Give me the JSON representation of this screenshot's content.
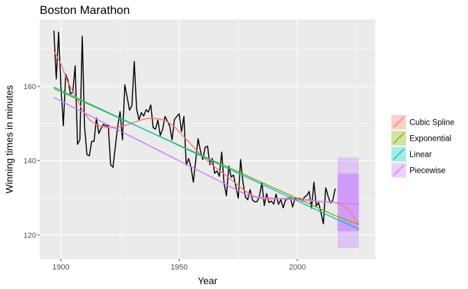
{
  "chart_data": {
    "type": "line",
    "title": "Boston Marathon",
    "xlabel": "Year",
    "ylabel": "Winning times in minutes",
    "xlim": [
      1891,
      2033
    ],
    "ylim": [
      113.5,
      178
    ],
    "x_ticks": [
      1900,
      1950,
      2000
    ],
    "y_ticks": [
      120,
      140,
      160
    ],
    "grid": true,
    "legend_position": "right",
    "observed": {
      "color": "#000000",
      "points": [
        [
          1897,
          175
        ],
        [
          1898,
          162
        ],
        [
          1899,
          174.6
        ],
        [
          1900,
          159.7
        ],
        [
          1901,
          149.4
        ],
        [
          1902,
          163.2
        ],
        [
          1903,
          161.6
        ],
        [
          1904,
          158
        ],
        [
          1905,
          158.4
        ],
        [
          1906,
          165.5
        ],
        [
          1907,
          144.4
        ],
        [
          1908,
          145.6
        ],
        [
          1909,
          173.5
        ],
        [
          1910,
          148.9
        ],
        [
          1911,
          141.6
        ],
        [
          1912,
          141.3
        ],
        [
          1913,
          145.2
        ],
        [
          1914,
          145.2
        ],
        [
          1915,
          151.5
        ],
        [
          1916,
          147.3
        ],
        [
          1917,
          148.7
        ],
        [
          1918,
          149.8
        ],
        [
          1919,
          149.3
        ],
        [
          1920,
          149.5
        ],
        [
          1921,
          138.9
        ],
        [
          1922,
          138.2
        ],
        [
          1923,
          143.8
        ],
        [
          1924,
          149.1
        ],
        [
          1925,
          153.2
        ],
        [
          1926,
          145.6
        ],
        [
          1927,
          160.4
        ],
        [
          1928,
          157.1
        ],
        [
          1929,
          153.6
        ],
        [
          1930,
          154.8
        ],
        [
          1931,
          166.7
        ],
        [
          1932,
          153.9
        ],
        [
          1933,
          151.0
        ],
        [
          1934,
          152.9
        ],
        [
          1935,
          152.0
        ],
        [
          1936,
          153.7
        ],
        [
          1937,
          153.1
        ],
        [
          1938,
          155.0
        ],
        [
          1939,
          148.9
        ],
        [
          1940,
          148.5
        ],
        [
          1941,
          150.9
        ],
        [
          1942,
          146.8
        ],
        [
          1943,
          148.4
        ],
        [
          1944,
          151.9
        ],
        [
          1945,
          150.7
        ],
        [
          1946,
          149.3
        ],
        [
          1947,
          145.6
        ],
        [
          1948,
          151.1
        ],
        [
          1949,
          151.9
        ],
        [
          1950,
          152.6
        ],
        [
          1951,
          147.8
        ],
        [
          1952,
          151.9
        ],
        [
          1953,
          138.8
        ],
        [
          1954,
          140.6
        ],
        [
          1955,
          138.3
        ],
        [
          1956,
          134.2
        ],
        [
          1957,
          140.1
        ],
        [
          1958,
          145.9
        ],
        [
          1959,
          142.6
        ],
        [
          1960,
          140.3
        ],
        [
          1961,
          143.6
        ],
        [
          1962,
          143.9
        ],
        [
          1963,
          138.9
        ],
        [
          1964,
          140.6
        ],
        [
          1965,
          136.6
        ],
        [
          1966,
          137.2
        ],
        [
          1967,
          135.8
        ],
        [
          1968,
          142.3
        ],
        [
          1969,
          133.8
        ],
        [
          1970,
          130.5
        ],
        [
          1971,
          138.5
        ],
        [
          1972,
          135.6
        ],
        [
          1973,
          136.1
        ],
        [
          1974,
          133.0
        ],
        [
          1975,
          129.9
        ],
        [
          1976,
          140.3
        ],
        [
          1977,
          134.1
        ],
        [
          1978,
          130.2
        ],
        [
          1979,
          129.5
        ],
        [
          1980,
          132.2
        ],
        [
          1981,
          129.4
        ],
        [
          1982,
          128.9
        ],
        [
          1983,
          129.0
        ],
        [
          1984,
          130.6
        ],
        [
          1985,
          134.1
        ],
        [
          1986,
          127.9
        ],
        [
          1987,
          131.1
        ],
        [
          1988,
          128.7
        ],
        [
          1989,
          129.1
        ],
        [
          1990,
          128.3
        ],
        [
          1991,
          131.0
        ],
        [
          1992,
          128.2
        ],
        [
          1993,
          129.5
        ],
        [
          1994,
          127.3
        ],
        [
          1995,
          129.4
        ],
        [
          1996,
          129.6
        ],
        [
          1997,
          130.2
        ],
        [
          1998,
          127.5
        ],
        [
          1999,
          129.8
        ],
        [
          2000,
          129.8
        ],
        [
          2001,
          129.9
        ],
        [
          2002,
          129.1
        ],
        [
          2003,
          130.2
        ],
        [
          2004,
          130.6
        ],
        [
          2005,
          131.7
        ],
        [
          2006,
          127.2
        ],
        [
          2007,
          134.2
        ],
        [
          2008,
          127.8
        ],
        [
          2009,
          128.7
        ],
        [
          2010,
          125.9
        ],
        [
          2011,
          123.0
        ],
        [
          2012,
          132.7
        ],
        [
          2013,
          130.4
        ],
        [
          2014,
          128.6
        ],
        [
          2015,
          129.3
        ],
        [
          2016,
          132.5
        ]
      ]
    },
    "series": [
      {
        "name": "Cubic Spline",
        "color": "#F8766D",
        "fit": [
          [
            1897,
            169.5
          ],
          [
            1900,
            166
          ],
          [
            1903,
            161
          ],
          [
            1906,
            157.5
          ],
          [
            1909,
            153.7
          ],
          [
            1912,
            151
          ],
          [
            1915,
            149.7
          ],
          [
            1918,
            149
          ],
          [
            1921,
            148.8
          ],
          [
            1924,
            149
          ],
          [
            1927,
            149.4
          ],
          [
            1930,
            150.1
          ],
          [
            1933,
            150.8
          ],
          [
            1936,
            151.3
          ],
          [
            1939,
            151.4
          ],
          [
            1942,
            151.2
          ],
          [
            1945,
            150.5
          ],
          [
            1948,
            149.1
          ],
          [
            1951,
            147.1
          ],
          [
            1954,
            145.1
          ],
          [
            1957,
            143
          ],
          [
            1960,
            141
          ],
          [
            1963,
            139.4
          ],
          [
            1966,
            137.8
          ],
          [
            1969,
            136.4
          ],
          [
            1972,
            134.9
          ],
          [
            1975,
            133.3
          ],
          [
            1978,
            131.8
          ],
          [
            1981,
            130.6
          ],
          [
            1984,
            129.9
          ],
          [
            1987,
            129.7
          ],
          [
            1990,
            129.7
          ],
          [
            1993,
            129.8
          ],
          [
            1996,
            129.9
          ],
          [
            1999,
            130
          ],
          [
            2002,
            129.8
          ],
          [
            2005,
            129.5
          ],
          [
            2008,
            129.1
          ],
          [
            2011,
            128.9
          ],
          [
            2014,
            128.8
          ],
          [
            2016,
            128.7
          ]
        ],
        "forecast": [
          [
            2016,
            128.7
          ],
          [
            2018,
            128.2
          ],
          [
            2020,
            127.6
          ],
          [
            2022,
            126.5
          ],
          [
            2024,
            124.8
          ],
          [
            2026,
            122.8
          ]
        ],
        "band80": null,
        "band95": null
      },
      {
        "name": "Exponential",
        "color": "#7CAE00",
        "fit": [
          [
            1897,
            159.4
          ],
          [
            2016,
            125.2
          ]
        ],
        "forecast": [
          [
            2016,
            125.2
          ],
          [
            2026,
            122.8
          ]
        ],
        "band80": null,
        "band95": null
      },
      {
        "name": "Linear",
        "color": "#00BFC4",
        "fit": [
          [
            1897,
            159.8
          ],
          [
            2016,
            124.4
          ]
        ],
        "forecast": [
          [
            2016,
            124.4
          ],
          [
            2026,
            121.6
          ]
        ],
        "band80": null,
        "band95": null
      },
      {
        "name": "Piecewise",
        "color": "#C77CFF",
        "fit": [
          [
            1897,
            157
          ],
          [
            1980,
            130.3
          ],
          [
            2016,
            128.7
          ]
        ],
        "forecast": [
          [
            2016,
            128.7
          ],
          [
            2026,
            128.2
          ]
        ],
        "band80": {
          "x0": 2017,
          "x1": 2026,
          "lower": 121,
          "upper": 136.5
        },
        "band95": {
          "x0": 2017,
          "x1": 2026,
          "lower": 116.5,
          "upper": 140.8
        }
      }
    ]
  }
}
